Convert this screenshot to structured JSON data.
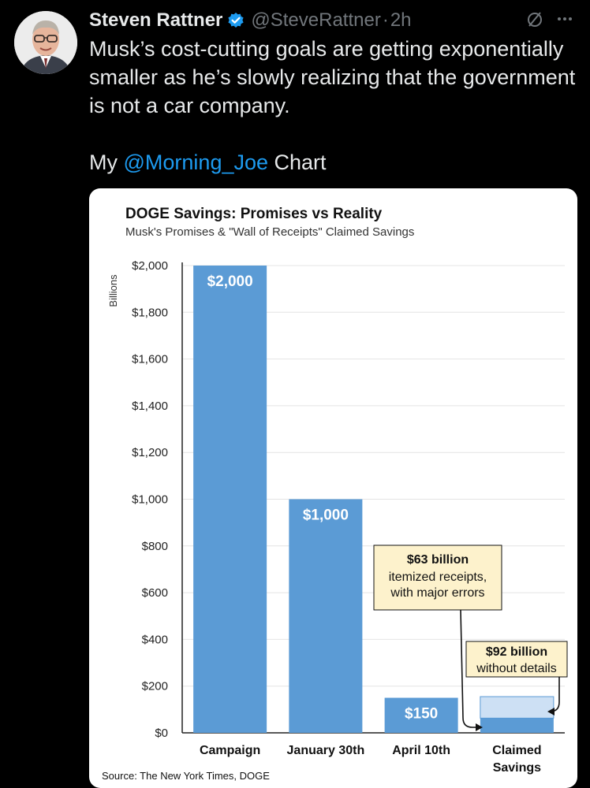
{
  "tweet": {
    "author_name": "Steven Rattner",
    "handle": "@SteveRattner",
    "separator": "·",
    "time": "2h",
    "text_line": "Musk’s cost-cutting goals are getting exponentially smaller as he’s slowly realizing that the government is not a car company.",
    "chart_prefix": "My ",
    "mention": "@Morning_Joe",
    "chart_suffix": " Chart"
  },
  "icons": {
    "verified": "verified-badge-icon",
    "grok": "slash-circle-icon",
    "more": "more-icon"
  },
  "colors": {
    "bar": "#5b9bd5",
    "bar_light": "#cde0f4",
    "callout_bg": "#fdf2cc",
    "link": "#1d9bf0"
  },
  "chart_data": {
    "type": "bar",
    "title": "DOGE Savings: Promises vs Reality",
    "subtitle": "Musk's Promises & \"Wall of Receipts\" Claimed Savings",
    "ylabel": "Billions",
    "ylim": [
      0,
      2000
    ],
    "yticks": [
      "$0",
      "$200",
      "$400",
      "$600",
      "$800",
      "$1,000",
      "$1,200",
      "$1,400",
      "$1,600",
      "$1,800",
      "$2,000"
    ],
    "ytick_values": [
      0,
      200,
      400,
      600,
      800,
      1000,
      1200,
      1400,
      1600,
      1800,
      2000
    ],
    "categories": [
      "Campaign",
      "January 30th",
      "April 10th",
      "Claimed Savings"
    ],
    "values": [
      2000,
      1000,
      150,
      155
    ],
    "data_labels": [
      "$2,000",
      "$1,000",
      "$150",
      ""
    ],
    "stacked_last": {
      "itemized": 63,
      "without_details": 92
    },
    "callouts": [
      {
        "bold": "$63 billion",
        "lines": [
          "itemized receipts,",
          "with major errors"
        ]
      },
      {
        "bold": "$92 billion",
        "lines": [
          "without details"
        ]
      }
    ],
    "source": "Source: The New York Times, DOGE"
  }
}
